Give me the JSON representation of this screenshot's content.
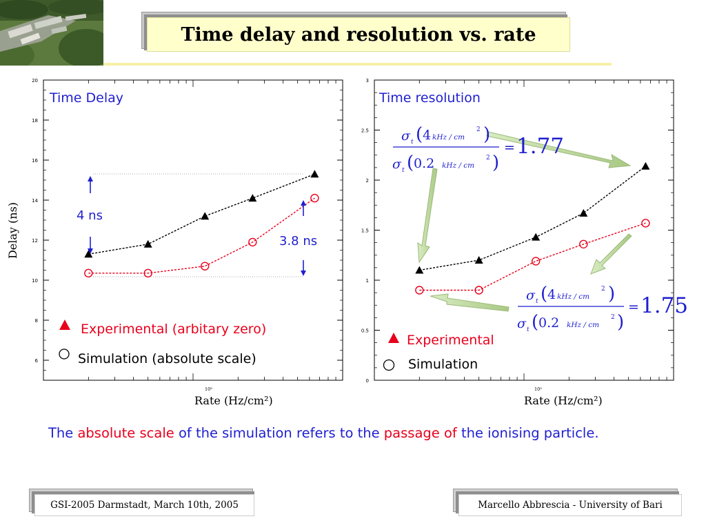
{
  "slide": {
    "title": "Time delay and resolution vs. rate",
    "footnote": {
      "parts": [
        {
          "text": "The ",
          "style": "blue"
        },
        {
          "text": "absolute scale",
          "style": "red"
        },
        {
          "text": " of the simulation refers to the ",
          "style": "blue"
        },
        {
          "text": "passage of",
          "style": "red"
        },
        {
          "text": " the ionising particle.",
          "style": "blue"
        }
      ]
    },
    "footer": {
      "left": "GSI-2005 Darmstadt, March 10th, 2005",
      "right": "Marcello Abbrescia - University of Bari"
    },
    "photo": "aerial-campus-photo"
  },
  "colors": {
    "blue": "#1f1fd0",
    "red": "#e8001c",
    "title_bg": "#ffffcc",
    "arrow_green": "#bcd89a"
  },
  "chart_data": [
    {
      "type": "line",
      "title": "Time Delay",
      "xlabel": "Rate (Hz/cm²)",
      "x_multiplier_label": "10³",
      "ylabel": "Delay (ns)",
      "xscale": "log",
      "ylim": [
        5,
        20
      ],
      "yticks": [
        "6",
        "8",
        "10",
        "12",
        "14",
        "16",
        "18",
        "20"
      ],
      "ytick_values": [
        6,
        8,
        10,
        12,
        14,
        16,
        18,
        20
      ],
      "x": [
        200,
        500,
        1200,
        2500,
        6500
      ],
      "series": [
        {
          "name": "Experimental (arbitary zero)",
          "marker": "filled-triangle",
          "color": "#000000",
          "values": [
            11.3,
            11.8,
            13.2,
            14.1,
            15.3
          ]
        },
        {
          "name": "Simulation (absolute scale)",
          "marker": "open-circle",
          "color": "#e8001c",
          "values": [
            10.35,
            10.35,
            10.7,
            11.9,
            14.1
          ]
        }
      ],
      "annotations": [
        {
          "label": "4 ns"
        },
        {
          "label": "3.8 ns"
        }
      ],
      "legend_position": "bottom-left"
    },
    {
      "type": "line",
      "title": "Time resolution",
      "xlabel": "Rate (Hz/cm²)",
      "x_multiplier_label": "10³",
      "xscale": "log",
      "ylim": [
        0,
        3
      ],
      "yticks": [
        "0",
        "0.5",
        "1",
        "1.5",
        "2",
        "2.5",
        "3"
      ],
      "ytick_values": [
        0,
        0.5,
        1,
        1.5,
        2,
        2.5,
        3
      ],
      "x": [
        200,
        500,
        1200,
        2500,
        6500
      ],
      "series": [
        {
          "name": "Experimental",
          "marker": "filled-triangle",
          "color": "#000000",
          "values": [
            1.1,
            1.2,
            1.43,
            1.67,
            2.14
          ]
        },
        {
          "name": "Simulation",
          "marker": "open-circle",
          "color": "#e8001c",
          "values": [
            0.9,
            0.9,
            1.19,
            1.36,
            1.57
          ]
        }
      ],
      "ratio_annotations": [
        {
          "sigma": "σ",
          "sub": "t",
          "num_value": "4",
          "den_value": "0.2",
          "unit": "kHz / cm",
          "unit_power": "2",
          "equals": "=",
          "result": "1.77",
          "series": "Experimental"
        },
        {
          "sigma": "σ",
          "sub": "t",
          "num_value": "4",
          "den_value": "0.2",
          "unit": "kHz / cm",
          "unit_power": "2",
          "equals": "=",
          "result": "1.75",
          "series": "Simulation"
        }
      ],
      "legend_position": "bottom-left"
    }
  ]
}
